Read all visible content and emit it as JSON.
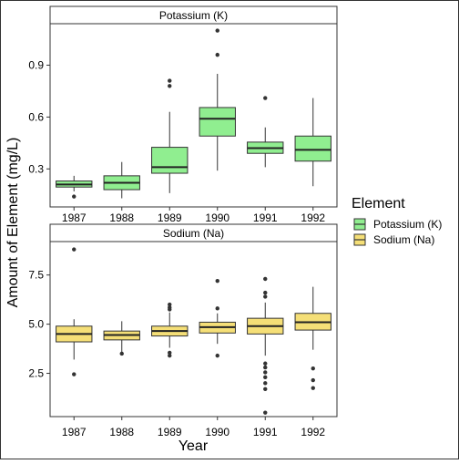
{
  "chart_data": {
    "type": "boxplot",
    "xlabel": "Year",
    "ylabel": "Amount of Element (mg/L)",
    "legend": {
      "title": "Element",
      "placement": "right",
      "entries": [
        {
          "label": "Potassium (K)",
          "color": "#90EE90"
        },
        {
          "label": "Sodium (Na)",
          "color": "#F5DF77"
        }
      ]
    },
    "categories": [
      "1987",
      "1988",
      "1989",
      "1990",
      "1991",
      "1992"
    ],
    "panels": [
      {
        "title": "Potassium (K)",
        "color": "#90EE90",
        "ylim": [
          0.08,
          1.14
        ],
        "yticks": [
          0.3,
          0.6,
          0.9
        ],
        "ytick_labels": [
          "0.3",
          "0.6",
          "0.9"
        ],
        "boxes": [
          {
            "year": "1987",
            "whisker_low": 0.17,
            "q1": 0.195,
            "median": 0.21,
            "q3": 0.23,
            "whisker_high": 0.26,
            "outliers": [
              0.14
            ]
          },
          {
            "year": "1988",
            "whisker_low": 0.13,
            "q1": 0.18,
            "median": 0.22,
            "q3": 0.26,
            "whisker_high": 0.34,
            "outliers": []
          },
          {
            "year": "1989",
            "whisker_low": 0.16,
            "q1": 0.275,
            "median": 0.31,
            "q3": 0.425,
            "whisker_high": 0.63,
            "outliers": [
              0.78,
              0.81
            ]
          },
          {
            "year": "1990",
            "whisker_low": 0.29,
            "q1": 0.49,
            "median": 0.59,
            "q3": 0.655,
            "whisker_high": 0.85,
            "outliers": [
              0.96,
              1.1
            ]
          },
          {
            "year": "1991",
            "whisker_low": 0.31,
            "q1": 0.39,
            "median": 0.42,
            "q3": 0.455,
            "whisker_high": 0.54,
            "outliers": [
              0.71
            ]
          },
          {
            "year": "1992",
            "whisker_low": 0.2,
            "q1": 0.345,
            "median": 0.41,
            "q3": 0.49,
            "whisker_high": 0.71,
            "outliers": []
          }
        ]
      },
      {
        "title": "Sodium (Na)",
        "color": "#F5DF77",
        "ylim": [
          0.3,
          9.2
        ],
        "yticks": [
          2.5,
          5.0,
          7.5
        ],
        "ytick_labels": [
          "2.5",
          "5.0",
          "7.5"
        ],
        "boxes": [
          {
            "year": "1987",
            "whisker_low": 3.2,
            "q1": 4.1,
            "median": 4.5,
            "q3": 4.9,
            "whisker_high": 5.25,
            "outliers": [
              2.45,
              8.8
            ]
          },
          {
            "year": "1988",
            "whisker_low": 3.5,
            "q1": 4.2,
            "median": 4.45,
            "q3": 4.65,
            "whisker_high": 5.15,
            "outliers": [
              3.5
            ]
          },
          {
            "year": "1989",
            "whisker_low": 3.8,
            "q1": 4.4,
            "median": 4.65,
            "q3": 4.9,
            "whisker_high": 5.6,
            "outliers": [
              3.4,
              3.55,
              5.75,
              5.85,
              6.0
            ]
          },
          {
            "year": "1990",
            "whisker_low": 4.0,
            "q1": 4.55,
            "median": 4.85,
            "q3": 5.1,
            "whisker_high": 5.55,
            "outliers": [
              3.4,
              5.8,
              7.2
            ]
          },
          {
            "year": "1991",
            "whisker_low": 3.4,
            "q1": 4.5,
            "median": 4.9,
            "q3": 5.3,
            "whisker_high": 6.1,
            "outliers": [
              0.5,
              1.7,
              2.0,
              2.3,
              2.55,
              2.8,
              3.0,
              6.4,
              6.6,
              7.3
            ]
          },
          {
            "year": "1992",
            "whisker_low": 3.7,
            "q1": 4.7,
            "median": 5.1,
            "q3": 5.55,
            "whisker_high": 6.9,
            "outliers": [
              1.75,
              2.15,
              2.75
            ]
          }
        ]
      }
    ]
  }
}
